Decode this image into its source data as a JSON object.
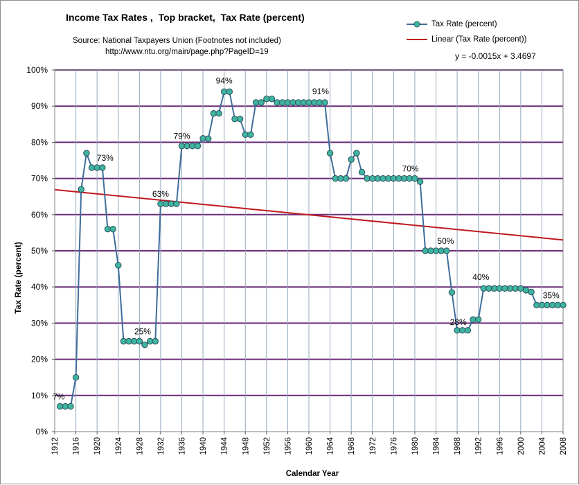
{
  "chart_data": {
    "type": "line",
    "title": "Income Tax Rates ,  Top bracket,  Tax Rate (percent)",
    "subtitle": "Source: National Taxpayers Union (Footnotes not included)",
    "source_url": "http://www.ntu.org/main/page.php?PageID=19",
    "xlabel": "Calendar Year",
    "ylabel": "Tax Rate (percent)",
    "xlim": [
      1912,
      2008
    ],
    "ylim": [
      0,
      100
    ],
    "y_ticks": [
      "0%",
      "10%",
      "20%",
      "30%",
      "40%",
      "50%",
      "60%",
      "70%",
      "80%",
      "90%",
      "100%"
    ],
    "x_ticks": [
      "1912",
      "1916",
      "1920",
      "1924",
      "1928",
      "1932",
      "1936",
      "1940",
      "1944",
      "1948",
      "1952",
      "1956",
      "1960",
      "1964",
      "1968",
      "1972",
      "1976",
      "1980",
      "1984",
      "1988",
      "1992",
      "1996",
      "2000",
      "2004",
      "2008"
    ],
    "legend": {
      "position": "top-right",
      "entries": [
        "Tax Rate (percent)",
        "Linear (Tax Rate (percent))"
      ]
    },
    "trendline_equation": "y = -0.0015x + 3.4697",
    "series": [
      {
        "name": "Tax Rate (percent)",
        "color": "#3f6d9a",
        "marker_color": "#3fb59f",
        "x": [
          1913,
          1914,
          1915,
          1916,
          1917,
          1918,
          1919,
          1920,
          1921,
          1922,
          1923,
          1924,
          1925,
          1926,
          1927,
          1928,
          1929,
          1930,
          1931,
          1932,
          1933,
          1934,
          1935,
          1936,
          1937,
          1938,
          1939,
          1940,
          1941,
          1942,
          1943,
          1944,
          1945,
          1946,
          1947,
          1948,
          1949,
          1950,
          1951,
          1952,
          1953,
          1954,
          1955,
          1956,
          1957,
          1958,
          1959,
          1960,
          1961,
          1962,
          1963,
          1964,
          1965,
          1966,
          1967,
          1968,
          1969,
          1970,
          1971,
          1972,
          1973,
          1974,
          1975,
          1976,
          1977,
          1978,
          1979,
          1980,
          1981,
          1982,
          1983,
          1984,
          1985,
          1986,
          1987,
          1988,
          1989,
          1990,
          1991,
          1992,
          1993,
          1994,
          1995,
          1996,
          1997,
          1998,
          1999,
          2000,
          2001,
          2002,
          2003,
          2004,
          2005,
          2006,
          2007,
          2008
        ],
        "values": [
          7,
          7,
          7,
          15,
          67,
          77,
          73,
          73,
          73,
          56,
          56,
          46,
          25,
          25,
          25,
          25,
          24,
          25,
          25,
          63,
          63,
          63,
          63,
          79,
          79,
          79,
          79,
          81.1,
          81,
          88,
          88,
          94,
          94,
          86.45,
          86.45,
          82.13,
          82.13,
          91,
          91,
          92,
          92,
          91,
          91,
          91,
          91,
          91,
          91,
          91,
          91,
          91,
          91,
          77,
          70,
          70,
          70,
          75.25,
          77,
          71.75,
          70,
          70,
          70,
          70,
          70,
          70,
          70,
          70,
          70,
          70,
          69.13,
          50,
          50,
          50,
          50,
          50,
          38.5,
          28,
          28,
          28,
          31,
          31,
          39.6,
          39.6,
          39.6,
          39.6,
          39.6,
          39.6,
          39.6,
          39.6,
          39.1,
          38.6,
          35,
          35,
          35,
          35,
          35,
          35
        ]
      },
      {
        "name": "Linear (Tax Rate (percent))",
        "type": "trendline",
        "color": "#c0181f",
        "x": [
          1912,
          2008
        ],
        "values": [
          66.9,
          53.0
        ]
      }
    ],
    "annotations": [
      {
        "x": 1913,
        "y": 7,
        "text": "7%"
      },
      {
        "x": 1921,
        "y": 73,
        "text": "73%"
      },
      {
        "x": 1929,
        "y": 25,
        "text": "25%"
      },
      {
        "x": 1932,
        "y": 63,
        "text": "63%"
      },
      {
        "x": 1936,
        "y": 79,
        "text": "79%"
      },
      {
        "x": 1944,
        "y": 94,
        "text": "94%"
      },
      {
        "x": 1963,
        "y": 91,
        "text": "91%"
      },
      {
        "x": 1981,
        "y": 70,
        "text": "70%"
      },
      {
        "x": 1987,
        "y": 50,
        "text": "50%"
      },
      {
        "x": 1989,
        "y": 28,
        "text": "28%"
      },
      {
        "x": 1993,
        "y": 40,
        "text": "40%"
      },
      {
        "x": 2006,
        "y": 35,
        "text": "35%"
      }
    ]
  }
}
